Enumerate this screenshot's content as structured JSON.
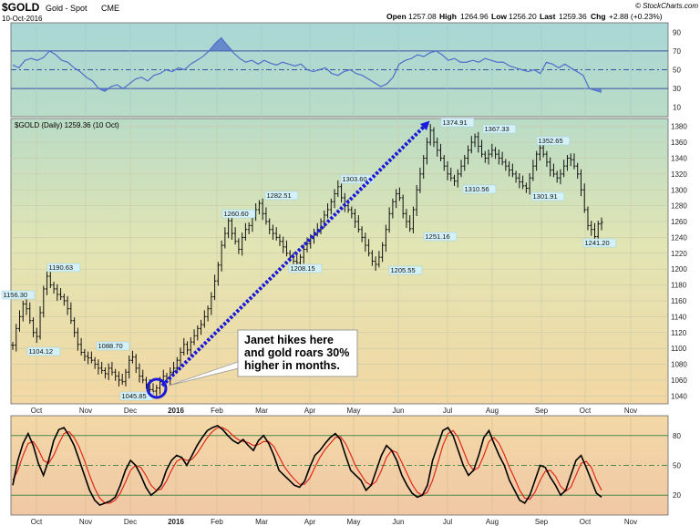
{
  "header": {
    "symbol": "$GOLD",
    "name": "Gold - Spot",
    "exchange": "CME",
    "date": "10-Oct-2016",
    "credit": "© StockCharts.com",
    "open_label": "Open",
    "open": "1257.08",
    "high_label": "High",
    "high": "1264.96",
    "low_label": "Low",
    "low": "1256.20",
    "last_label": "Last",
    "last": "1259.36",
    "chg_label": "Chg",
    "chg": "+2.88 (+0.23%)"
  },
  "price_legend": "$GOLD (Daily) 1259.36 (10 Oct)",
  "annotation": {
    "lines": [
      "Janet hikes here",
      "and gold roars 30%",
      "higher in months."
    ]
  },
  "colors": {
    "price_bar": "#111111",
    "arrow": "#1a1adb",
    "rsi_line": "#4f6fc9",
    "rsi_fill": "#4f6fc9",
    "stoch_k": "#000000",
    "stoch_d": "#e0281e",
    "label_bg": "#d4f1f7"
  },
  "chart_data": [
    {
      "type": "line",
      "panel": "rsi",
      "title": "",
      "ylim": [
        0,
        100
      ],
      "yticks": [
        10,
        30,
        50,
        70,
        90
      ],
      "reference_lines": [
        30,
        50,
        70
      ],
      "series": [
        {
          "values": [
            55,
            52,
            60,
            62,
            60,
            63,
            70,
            66,
            60,
            58,
            52,
            48,
            42,
            38,
            30,
            27,
            32,
            34,
            30,
            35,
            40,
            42,
            38,
            44,
            46,
            50,
            48,
            52,
            50,
            56,
            60,
            64,
            70,
            78,
            84,
            76,
            68,
            62,
            58,
            60,
            56,
            60,
            57,
            55,
            58,
            56,
            54,
            56,
            50,
            48,
            50,
            52,
            46,
            44,
            48,
            50,
            46,
            44,
            40,
            36,
            32,
            35,
            42,
            56,
            60,
            62,
            66,
            64,
            68,
            70,
            66,
            60,
            62,
            58,
            58,
            60,
            58,
            62,
            60,
            58,
            58,
            54,
            52,
            50,
            48,
            50,
            46,
            58,
            56,
            52,
            56,
            52,
            48,
            44,
            30,
            28,
            26
          ]
        }
      ]
    },
    {
      "type": "bar",
      "panel": "price",
      "title": "$GOLD (Daily) 1259.36 (10 Oct)",
      "x_ticks": [
        "Oct",
        "Nov",
        "Dec",
        "2016",
        "Feb",
        "Mar",
        "Apr",
        "May",
        "Jun",
        "Jul",
        "Aug",
        "Sep",
        "Oct",
        "Nov"
      ],
      "ylim": [
        1030,
        1390
      ],
      "yticks": [
        1040,
        1060,
        1080,
        1100,
        1120,
        1140,
        1160,
        1180,
        1200,
        1220,
        1240,
        1260,
        1280,
        1300,
        1320,
        1340,
        1360,
        1380
      ],
      "closes": [
        1104,
        1125,
        1140,
        1156,
        1150,
        1135,
        1120,
        1115,
        1145,
        1175,
        1191,
        1180,
        1175,
        1168,
        1165,
        1160,
        1150,
        1135,
        1120,
        1105,
        1095,
        1090,
        1088,
        1085,
        1080,
        1075,
        1072,
        1068,
        1075,
        1070,
        1065,
        1060,
        1058,
        1070,
        1085,
        1089,
        1075,
        1065,
        1060,
        1055,
        1048,
        1046,
        1050,
        1058,
        1065,
        1062,
        1070,
        1075,
        1085,
        1095,
        1105,
        1098,
        1108,
        1116,
        1125,
        1130,
        1140,
        1150,
        1165,
        1185,
        1205,
        1230,
        1245,
        1261,
        1245,
        1235,
        1225,
        1240,
        1250,
        1255,
        1265,
        1275,
        1283,
        1270,
        1260,
        1250,
        1245,
        1240,
        1235,
        1228,
        1220,
        1215,
        1210,
        1208,
        1215,
        1225,
        1232,
        1240,
        1245,
        1250,
        1260,
        1268,
        1275,
        1285,
        1295,
        1304,
        1290,
        1280,
        1275,
        1270,
        1260,
        1250,
        1240,
        1230,
        1220,
        1210,
        1206,
        1215,
        1230,
        1250,
        1270,
        1285,
        1295,
        1290,
        1270,
        1260,
        1251,
        1275,
        1300,
        1320,
        1340,
        1360,
        1375,
        1360,
        1350,
        1340,
        1330,
        1320,
        1315,
        1311,
        1320,
        1330,
        1340,
        1350,
        1360,
        1367,
        1355,
        1345,
        1340,
        1345,
        1350,
        1345,
        1340,
        1335,
        1330,
        1325,
        1320,
        1315,
        1310,
        1305,
        1302,
        1315,
        1330,
        1345,
        1353,
        1345,
        1335,
        1325,
        1320,
        1315,
        1320,
        1330,
        1340,
        1338,
        1330,
        1320,
        1300,
        1275,
        1255,
        1250,
        1241,
        1257,
        1259
      ],
      "annotations": [
        {
          "label": "1104.12",
          "value": 1104.12
        },
        {
          "label": "1156.30",
          "value": 1156.3
        },
        {
          "label": "1190.63",
          "value": 1190.63
        },
        {
          "label": "1088.70",
          "value": 1088.7
        },
        {
          "label": "1045.85",
          "value": 1045.85
        },
        {
          "label": "1260.60",
          "value": 1260.6
        },
        {
          "label": "1282.51",
          "value": 1282.51
        },
        {
          "label": "1208.15",
          "value": 1208.15
        },
        {
          "label": "1303.60",
          "value": 1303.6
        },
        {
          "label": "1205.55",
          "value": 1205.55
        },
        {
          "label": "1251.16",
          "value": 1251.16
        },
        {
          "label": "1374.91",
          "value": 1374.91
        },
        {
          "label": "1310.56",
          "value": 1310.56
        },
        {
          "label": "1367.33",
          "value": 1367.33
        },
        {
          "label": "1301.91",
          "value": 1301.91
        },
        {
          "label": "1352.65",
          "value": 1352.65
        },
        {
          "label": "1241.20",
          "value": 1241.2
        }
      ]
    },
    {
      "type": "line",
      "panel": "stochastic",
      "title": "",
      "ylim": [
        0,
        100
      ],
      "yticks": [
        20,
        50,
        80
      ],
      "reference_lines": [
        20,
        50,
        80
      ],
      "series": [
        {
          "values": [
            30,
            55,
            72,
            82,
            70,
            52,
            40,
            55,
            75,
            86,
            88,
            80,
            70,
            55,
            40,
            25,
            15,
            10,
            12,
            14,
            18,
            30,
            45,
            55,
            50,
            40,
            28,
            20,
            24,
            30,
            45,
            55,
            60,
            58,
            50,
            60,
            70,
            78,
            85,
            88,
            90,
            86,
            80,
            75,
            72,
            76,
            70,
            65,
            75,
            80,
            72,
            60,
            45,
            40,
            35,
            30,
            28,
            34,
            48,
            60,
            65,
            72,
            78,
            82,
            76,
            60,
            45,
            40,
            35,
            25,
            30,
            45,
            60,
            70,
            65,
            55,
            40,
            30,
            22,
            18,
            20,
            30,
            55,
            70,
            85,
            88,
            80,
            65,
            50,
            40,
            45,
            60,
            78,
            85,
            72,
            60,
            50,
            35,
            25,
            15,
            12,
            20,
            35,
            50,
            48,
            38,
            30,
            20,
            25,
            40,
            55,
            60,
            48,
            35,
            22,
            18
          ]
        },
        {
          "values": [
            35,
            45,
            60,
            72,
            74,
            66,
            55,
            52,
            60,
            72,
            82,
            84,
            78,
            68,
            55,
            40,
            27,
            17,
            12,
            12,
            15,
            22,
            33,
            45,
            50,
            48,
            40,
            30,
            25,
            26,
            34,
            45,
            54,
            57,
            55,
            56,
            62,
            70,
            78,
            84,
            88,
            88,
            85,
            80,
            76,
            74,
            73,
            70,
            71,
            74,
            74,
            69,
            59,
            49,
            42,
            36,
            31,
            31,
            37,
            48,
            58,
            66,
            72,
            78,
            79,
            72,
            61,
            49,
            41,
            33,
            30,
            34,
            45,
            58,
            65,
            63,
            53,
            42,
            31,
            23,
            20,
            23,
            35,
            52,
            70,
            82,
            85,
            78,
            65,
            52,
            45,
            48,
            60,
            74,
            78,
            72,
            61,
            48,
            37,
            25,
            17,
            16,
            23,
            35,
            44,
            45,
            39,
            29,
            24,
            28,
            40,
            52,
            54,
            48,
            35,
            25
          ]
        }
      ]
    }
  ]
}
